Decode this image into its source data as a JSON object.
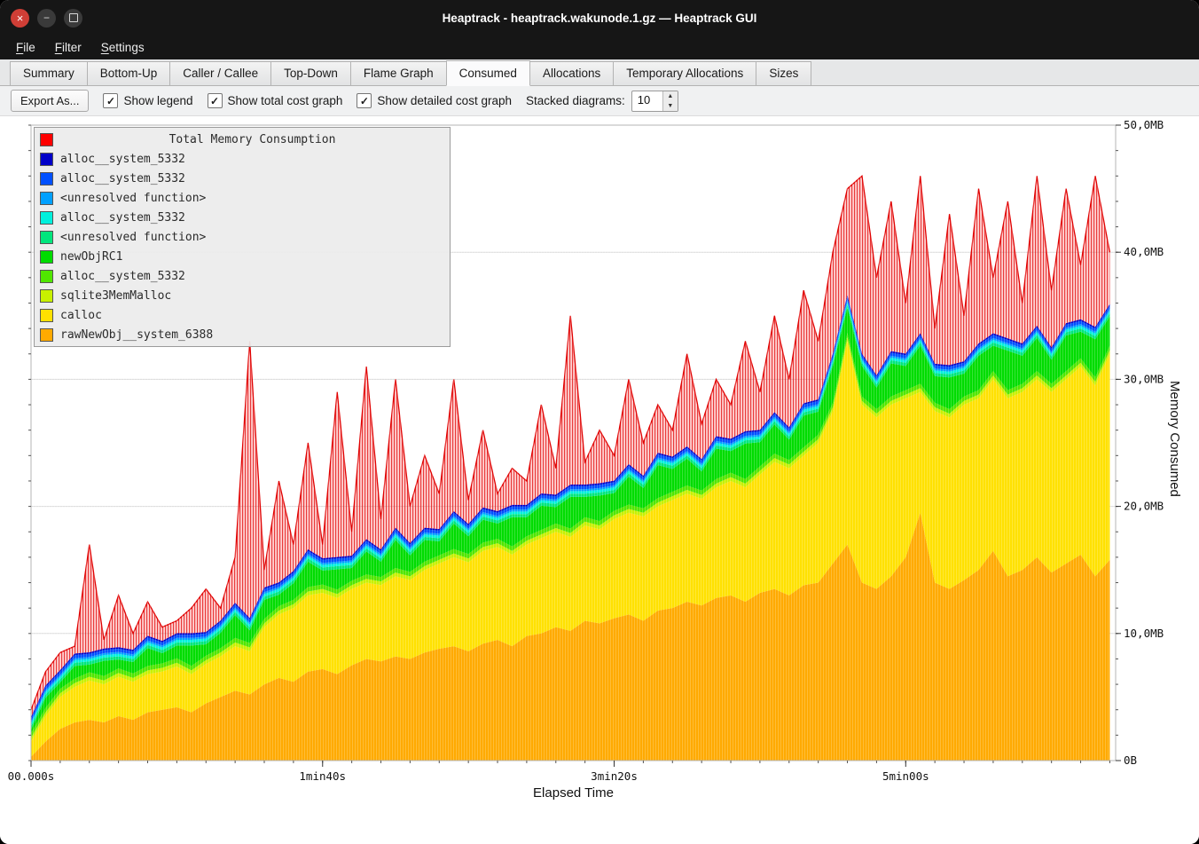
{
  "window": {
    "title": "Heaptrack - heaptrack.wakunode.1.gz — Heaptrack GUI"
  },
  "window_buttons": {
    "close": "×",
    "minimize": "−",
    "maximize": ""
  },
  "menu": {
    "items": [
      {
        "label": "File",
        "accel": 0
      },
      {
        "label": "Filter",
        "accel": 0
      },
      {
        "label": "Settings",
        "accel": 0
      }
    ]
  },
  "tabs": {
    "items": [
      "Summary",
      "Bottom-Up",
      "Caller / Callee",
      "Top-Down",
      "Flame Graph",
      "Consumed",
      "Allocations",
      "Temporary Allocations",
      "Sizes"
    ],
    "active": "Consumed"
  },
  "toolbar": {
    "export_label": "Export As...",
    "checkboxes": [
      {
        "label": "Show legend",
        "checked": true
      },
      {
        "label": "Show total cost graph",
        "checked": true
      },
      {
        "label": "Show detailed cost graph",
        "checked": true
      }
    ],
    "stacked_label": "Stacked diagrams:",
    "stacked_value": "10"
  },
  "chart_data": {
    "type": "area",
    "title": "Total Memory Consumption",
    "xlabel": "Elapsed Time",
    "ylabel": "Memory Consumed",
    "xlim_seconds": [
      0,
      372
    ],
    "ylim_mb": [
      0,
      50
    ],
    "x_ticks": [
      {
        "t": 0,
        "label": "00.000s"
      },
      {
        "t": 100,
        "label": "1min40s"
      },
      {
        "t": 200,
        "label": "3min20s"
      },
      {
        "t": 300,
        "label": "5min00s"
      }
    ],
    "y_ticks": [
      {
        "mb": 0,
        "label": "0B"
      },
      {
        "mb": 10,
        "label": "10,0MB"
      },
      {
        "mb": 20,
        "label": "20,0MB"
      },
      {
        "mb": 30,
        "label": "30,0MB"
      },
      {
        "mb": 40,
        "label": "40,0MB"
      },
      {
        "mb": 50,
        "label": "50,0MB"
      }
    ],
    "x": [
      0,
      5,
      10,
      15,
      20,
      25,
      30,
      35,
      40,
      45,
      50,
      55,
      60,
      65,
      70,
      75,
      80,
      85,
      90,
      95,
      100,
      105,
      110,
      115,
      120,
      125,
      130,
      135,
      140,
      145,
      150,
      155,
      160,
      165,
      170,
      175,
      180,
      185,
      190,
      195,
      200,
      205,
      210,
      215,
      220,
      225,
      230,
      235,
      240,
      245,
      250,
      255,
      260,
      265,
      270,
      275,
      280,
      285,
      290,
      295,
      300,
      305,
      310,
      315,
      320,
      325,
      330,
      335,
      340,
      345,
      350,
      355,
      360,
      365,
      370
    ],
    "series": [
      {
        "name": "rawNewObj__system_6388",
        "color": "#FFAA00",
        "values": [
          0.3,
          1.5,
          2.5,
          3,
          3.2,
          3,
          3.5,
          3.2,
          3.8,
          4,
          4.2,
          3.8,
          4.5,
          5,
          5.5,
          5.2,
          6,
          6.5,
          6.2,
          7,
          7.2,
          6.8,
          7.5,
          8,
          7.8,
          8.2,
          8,
          8.5,
          8.8,
          9,
          8.6,
          9.2,
          9.5,
          9,
          9.8,
          10,
          10.5,
          10.2,
          11,
          10.8,
          11.2,
          11.5,
          11,
          11.8,
          12,
          12.5,
          12.2,
          12.8,
          13,
          12.5,
          13.2,
          13.5,
          13,
          13.8,
          14,
          15.5,
          17,
          14,
          13.5,
          14.5,
          16,
          19.5,
          14,
          13.5,
          14.2,
          15,
          16.5,
          14.5,
          15,
          16,
          14.8,
          15.5,
          16.2,
          14.5,
          15.8
        ]
      },
      {
        "name": "calloc",
        "color": "#FFE100",
        "values": [
          1.2,
          2,
          2.5,
          2.8,
          3.1,
          3,
          3.1,
          3,
          3,
          3,
          3.2,
          3,
          3.1,
          3.2,
          3.5,
          3.4,
          4.5,
          5,
          5.8,
          6,
          6,
          6,
          6,
          6,
          6,
          6.3,
          6.2,
          6.5,
          6.7,
          7,
          7,
          7.3,
          7.3,
          7.2,
          7.2,
          7.5,
          7.5,
          7.4,
          7.5,
          7.4,
          7.8,
          8,
          8.2,
          8.2,
          8.5,
          8.5,
          8.4,
          8.7,
          9,
          9,
          9.3,
          10,
          10,
          10.2,
          11,
          12,
          16,
          14,
          13.5,
          13.5,
          12.5,
          9.5,
          13.5,
          13.5,
          13.8,
          13.5,
          13.5,
          14,
          14,
          14,
          14.2,
          14.5,
          14.8,
          15,
          16.2
        ]
      },
      {
        "name": "sqlite3MemMalloc",
        "color": "#C8F000",
        "values": 0.3
      },
      {
        "name": "alloc__system_5332",
        "color": "#50E600",
        "values": 0.35
      },
      {
        "name": "newObjRC1",
        "color": "#00DC00",
        "values": [
          0.3,
          0.8,
          0.5,
          1,
          0.6,
          1.2,
          0.7,
          0.9,
          1.4,
          0.8,
          1,
          1.6,
          0.9,
          1.2,
          1.8,
          1,
          1.5,
          0.9,
          1.3,
          2,
          1.1,
          1.6,
          1,
          1.8,
          1.2,
          2.2,
          1.3,
          1.7,
          1.1,
          2,
          1.4,
          1.8,
          1.2,
          2.3,
          1.5,
          1.9,
          1.3,
          2.5,
          1.6,
          2,
          1.4,
          2.2,
          1.6,
          2.6,
          1.8,
          2.1,
          1.5,
          2.4,
          1.7,
          2.8,
          1.9,
          2.3,
          1.6,
          2.5,
          1.8,
          2.9,
          2,
          2.4,
          1.7,
          2.6,
          1.9,
          3,
          2.1,
          2.5,
          1.8,
          2.7,
          2,
          3.1,
          2.2,
          2.6,
          1.9,
          2.8,
          2.1,
          3,
          2.3
        ]
      },
      {
        "name": "<unresolved function>",
        "color": "#00E67D",
        "values": 0.25
      },
      {
        "name": "alloc__system_5332",
        "color": "#00F0DC",
        "values": 0.2
      },
      {
        "name": "<unresolved function>",
        "color": "#00A0FF",
        "values": 0.15
      },
      {
        "name": "alloc__system_5332",
        "color": "#0050FF",
        "values": 0.25
      },
      {
        "name": "alloc__system_5332",
        "color": "#0000C8",
        "values": 0.12
      }
    ],
    "total": {
      "name": "Total Memory Consumption",
      "color": "#FF0000",
      "values": [
        4,
        7,
        8.5,
        9,
        17,
        9.5,
        13,
        10,
        12.5,
        10.5,
        11,
        12,
        13.5,
        12,
        16,
        33,
        15,
        22,
        17,
        25,
        17,
        29,
        18,
        31,
        19,
        30,
        20,
        24,
        21,
        30,
        20.5,
        26,
        21,
        23,
        22,
        28,
        23,
        35,
        23.5,
        26,
        24,
        30,
        25,
        28,
        26,
        32,
        26.5,
        30,
        28,
        33,
        29,
        35,
        30,
        37,
        33,
        40,
        45,
        46,
        38,
        44,
        36,
        46,
        34,
        43,
        35,
        45,
        38,
        44,
        36,
        46,
        37,
        45,
        39,
        46,
        40
      ]
    }
  }
}
